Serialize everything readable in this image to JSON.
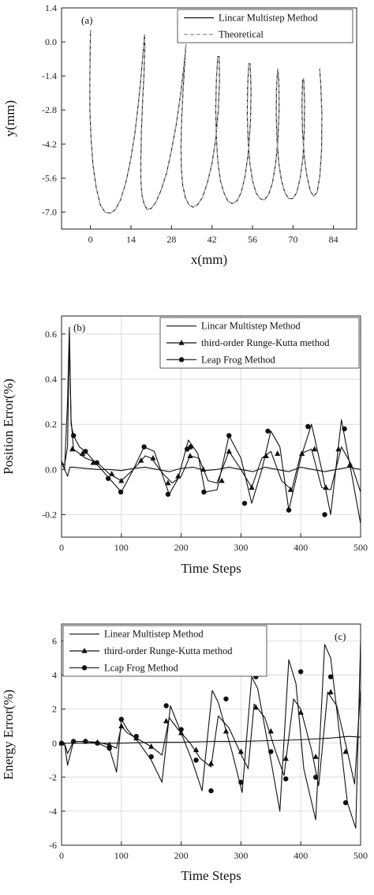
{
  "chart_data": [
    {
      "type": "line",
      "panel_label": "(a)",
      "xlabel": "x(mm)",
      "ylabel": "y(mm)",
      "xlim": [
        -10,
        92
      ],
      "ylim": [
        -7.7,
        1.4
      ],
      "xticks": [
        0,
        14,
        28,
        42,
        56,
        70,
        84
      ],
      "xtick_labels": [
        "0",
        "14",
        "28",
        "42",
        "56",
        "70",
        "84"
      ],
      "yticks": [
        1.4,
        0.0,
        -1.4,
        -2.8,
        -4.2,
        -5.6,
        -7.0
      ],
      "ytick_labels": [
        "1.4",
        "0.0",
        "-1.4",
        "-2.8",
        "-4.2",
        "-5.6",
        "-7.0"
      ],
      "legend_position": "top-right",
      "series": [
        {
          "name": "Lincar Multistep Method",
          "style": "solid",
          "x": [
            0,
            -0.2,
            -0.2,
            0.2,
            0.9,
            2.0,
            3.4,
            5.0,
            6.8,
            8.6,
            10.4,
            12.2,
            13.8,
            15.3,
            16.5,
            17.5,
            18.2,
            18.7,
            18.8,
            18.5,
            18.0,
            17.6,
            17.4,
            17.4,
            17.8,
            18.6,
            19.6,
            21.0,
            22.6,
            24.4,
            26.3,
            28.1,
            29.8,
            31.2,
            32.3,
            32.9,
            33.0,
            32.6,
            32.0,
            31.5,
            31.3,
            31.4,
            31.9,
            32.8,
            34.0,
            35.4,
            37.0,
            38.7,
            40.4,
            42.0,
            43.3,
            44.2,
            44.6,
            44.5,
            44.0,
            43.5,
            43.3,
            43.5,
            44.0,
            44.9,
            46.1,
            47.5,
            49.0,
            50.6,
            52.1,
            53.5,
            54.6,
            55.3,
            55.5,
            55.2,
            54.7,
            54.3,
            54.2,
            54.5,
            55.1,
            56.0,
            57.2,
            58.6,
            60.0,
            61.5,
            62.9,
            64.0,
            64.8,
            65.2,
            65.1,
            64.7,
            64.3,
            64.2,
            64.5,
            65.1,
            66.0,
            67.2,
            68.5,
            69.9,
            71.3,
            72.5,
            73.4,
            73.9,
            74.0,
            73.7,
            73.3,
            73.1,
            73.3,
            73.9,
            74.8,
            75.9,
            77.1,
            78.3,
            79.3,
            79.9,
            80.0,
            79.6,
            79.2
          ],
          "y": [
            0.5,
            -1.4,
            -2.8,
            -4.0,
            -5.1,
            -6.0,
            -6.7,
            -7.0,
            -7.05,
            -6.9,
            -6.5,
            -5.8,
            -4.9,
            -3.8,
            -2.6,
            -1.4,
            -0.4,
            0.3,
            -0.2,
            -1.3,
            -2.5,
            -3.7,
            -4.8,
            -5.7,
            -6.3,
            -6.7,
            -6.9,
            -6.85,
            -6.6,
            -6.1,
            -5.4,
            -4.4,
            -3.3,
            -2.1,
            -1.0,
            -0.2,
            -0.1,
            -0.9,
            -2.0,
            -3.2,
            -4.3,
            -5.2,
            -5.9,
            -6.4,
            -6.7,
            -6.8,
            -6.7,
            -6.4,
            -5.8,
            -5.0,
            -4.0,
            -2.8,
            -1.6,
            -0.6,
            -0.6,
            -1.6,
            -2.8,
            -3.9,
            -4.9,
            -5.7,
            -6.2,
            -6.55,
            -6.65,
            -6.55,
            -6.2,
            -5.5,
            -4.5,
            -3.3,
            -2.0,
            -0.9,
            -0.9,
            -1.9,
            -3.0,
            -4.1,
            -5.0,
            -5.7,
            -6.2,
            -6.45,
            -6.5,
            -6.3,
            -5.8,
            -5.0,
            -4.0,
            -2.8,
            -1.6,
            -1.1,
            -1.9,
            -3.0,
            -4.1,
            -5.0,
            -5.7,
            -6.2,
            -6.45,
            -6.45,
            -6.2,
            -5.6,
            -4.8,
            -3.7,
            -2.5,
            -1.5,
            -1.6,
            -2.6,
            -3.7,
            -4.7,
            -5.5,
            -6.1,
            -6.35,
            -6.2,
            -5.5,
            -4.4,
            -3.0,
            -1.7,
            -1.1
          ]
        },
        {
          "name": "Theoretical",
          "style": "dashed",
          "x": "same as Lincar Multistep Method",
          "y": "same as Lincar Multistep Method"
        }
      ]
    },
    {
      "type": "line",
      "panel_label": "(b)",
      "xlabel": "Time Steps",
      "ylabel": "Position Error(%)",
      "xlim": [
        0,
        500
      ],
      "ylim": [
        -0.3,
        0.68
      ],
      "xticks": [
        0,
        100,
        200,
        300,
        400,
        500
      ],
      "xtick_labels": [
        "0",
        "100",
        "200",
        "300",
        "400",
        "500"
      ],
      "yticks": [
        -0.2,
        0.0,
        0.2,
        0.4,
        0.6
      ],
      "ytick_labels": [
        "-0.2",
        "0.0",
        "0.2",
        "0.4",
        "0.6"
      ],
      "grid": true,
      "legend_position": "top-right",
      "series": [
        {
          "name": "Lincar Multistep Method",
          "marker": "none",
          "x": [
            0,
            5,
            10,
            14,
            20,
            40,
            60,
            80,
            100,
            120,
            140,
            160,
            180,
            200,
            220,
            240,
            260,
            280,
            300,
            320,
            340,
            360,
            380,
            400,
            420,
            440,
            460,
            480,
            500
          ],
          "y": [
            0.03,
            0.0,
            -0.03,
            0.01,
            0.01,
            0.005,
            0.0,
            0.0,
            -0.005,
            0.005,
            0.01,
            0.0,
            -0.01,
            0.005,
            0.01,
            -0.005,
            0.0,
            0.01,
            0.0,
            -0.01,
            0.01,
            0.0,
            -0.01,
            0.01,
            0.0,
            -0.01,
            0.0,
            0.01,
            0.0
          ]
        },
        {
          "name": "third-order Runge-Kutta method",
          "marker": "triangle",
          "x": [
            0,
            5,
            10,
            13,
            16,
            20,
            30,
            40,
            60,
            80,
            100,
            120,
            140,
            150,
            170,
            185,
            200,
            215,
            230,
            245,
            260,
            280,
            300,
            318,
            335,
            350,
            368,
            385,
            400,
            418,
            435,
            450,
            468,
            485,
            500
          ],
          "y": [
            0.03,
            0.02,
            0.1,
            0.58,
            0.22,
            0.09,
            0.07,
            0.05,
            0.03,
            -0.02,
            -0.05,
            0.0,
            0.06,
            0.05,
            -0.02,
            -0.06,
            -0.03,
            0.06,
            0.05,
            -0.05,
            -0.06,
            0.08,
            0.0,
            -0.08,
            0.05,
            0.08,
            -0.05,
            -0.09,
            0.07,
            0.09,
            -0.08,
            -0.09,
            0.1,
            0.02,
            -0.1
          ],
          "marker_x": [
            18,
            35,
            53,
            84,
            100,
            133,
            153,
            178,
            195,
            215,
            237,
            268,
            280,
            318,
            342,
            361,
            383,
            402,
            423,
            442,
            463,
            482
          ],
          "marker_y": [
            0.09,
            0.07,
            0.03,
            -0.02,
            -0.05,
            0.04,
            0.05,
            -0.06,
            -0.03,
            0.06,
            0.0,
            -0.05,
            0.08,
            -0.08,
            0.06,
            0.07,
            -0.09,
            0.07,
            0.09,
            -0.08,
            0.09,
            0.02
          ]
        },
        {
          "name": "Leap Frog  Method",
          "marker": "circle",
          "x": [
            0,
            5,
            10,
            13,
            16,
            20,
            30,
            40,
            60,
            80,
            100,
            120,
            138,
            155,
            180,
            195,
            212,
            228,
            240,
            260,
            280,
            300,
            318,
            335,
            350,
            365,
            380,
            400,
            418,
            435,
            450,
            468,
            485,
            500
          ],
          "y": [
            0.04,
            0.0,
            0.3,
            0.63,
            0.2,
            0.15,
            0.1,
            0.08,
            0.02,
            -0.04,
            -0.1,
            0.0,
            0.1,
            0.08,
            -0.11,
            -0.04,
            0.13,
            0.07,
            -0.1,
            -0.09,
            0.15,
            0.05,
            -0.15,
            0.0,
            0.17,
            0.1,
            -0.18,
            0.05,
            0.2,
            0.0,
            -0.2,
            0.22,
            -0.02,
            -0.24
          ],
          "marker_x": [
            20,
            40,
            59,
            78,
            99,
            138,
            178,
            210,
            216,
            238,
            280,
            306,
            345,
            380,
            412,
            440,
            473
          ],
          "marker_y": [
            0.15,
            0.08,
            0.03,
            -0.04,
            -0.1,
            0.1,
            -0.11,
            0.09,
            0.1,
            -0.1,
            0.15,
            -0.15,
            0.17,
            -0.18,
            0.19,
            -0.2,
            0.18
          ]
        }
      ]
    },
    {
      "type": "line",
      "panel_label": "(c)",
      "xlabel": "Time Steps",
      "ylabel": "Energy Error(%)",
      "xlim": [
        0,
        500
      ],
      "ylim": [
        -6,
        7
      ],
      "xticks": [
        0,
        100,
        200,
        300,
        400,
        500
      ],
      "xtick_labels": [
        "0",
        "100",
        "200",
        "300",
        "400",
        "500"
      ],
      "yticks": [
        -6,
        -4,
        -2,
        0,
        2,
        4,
        6
      ],
      "ytick_labels": [
        "-6",
        "-4",
        "-2",
        "0",
        "2",
        "4",
        "6"
      ],
      "grid": true,
      "legend_position": "top-left",
      "series": [
        {
          "name": "Linear Multistep Method",
          "marker": "none",
          "x": [
            0,
            50,
            100,
            150,
            200,
            250,
            300,
            350,
            400,
            450,
            480,
            500
          ],
          "y": [
            0.0,
            0.0,
            0.0,
            0.05,
            0.05,
            0.1,
            0.1,
            0.15,
            0.2,
            0.3,
            0.4,
            0.35
          ]
        },
        {
          "name": "third-order Runge-Kutta method",
          "marker": "triangle",
          "x": [
            0,
            5,
            10,
            20,
            40,
            60,
            80,
            92,
            100,
            110,
            130,
            150,
            168,
            180,
            195,
            215,
            232,
            250,
            262,
            280,
            298,
            312,
            322,
            340,
            358,
            372,
            388,
            400,
            418,
            430,
            445,
            460,
            478,
            490,
            500
          ],
          "y": [
            0.0,
            0.0,
            -0.6,
            0.1,
            0.1,
            0.05,
            -0.1,
            -0.3,
            1.0,
            0.6,
            0.2,
            -0.2,
            -0.7,
            1.5,
            0.8,
            0.0,
            -0.9,
            -1.4,
            1.6,
            0.9,
            -0.5,
            -1.5,
            2.3,
            1.5,
            -0.5,
            -1.9,
            2.6,
            2.0,
            -0.4,
            -2.5,
            3.0,
            2.2,
            -0.5,
            -2.4,
            3.2
          ],
          "marker_x": [
            0,
            20,
            40,
            60,
            80,
            100,
            125,
            150,
            175,
            200,
            225,
            250,
            275,
            300,
            325,
            350,
            375,
            400,
            425,
            450,
            475
          ],
          "marker_y": [
            0.0,
            0.1,
            0.1,
            0.05,
            -0.1,
            1.0,
            0.3,
            -0.2,
            1.3,
            0.6,
            -0.4,
            -1.2,
            0.7,
            -0.5,
            2.1,
            0.7,
            -0.9,
            1.8,
            -0.8,
            3.0,
            -0.5
          ]
        },
        {
          "name": "Lcap Frog  Method",
          "marker": "circle",
          "x": [
            0,
            5,
            10,
            20,
            40,
            60,
            80,
            92,
            100,
            110,
            130,
            150,
            168,
            182,
            200,
            218,
            235,
            252,
            262,
            285,
            302,
            318,
            328,
            350,
            365,
            380,
            392,
            405,
            425,
            440,
            450,
            460,
            478,
            492,
            500
          ],
          "y": [
            0.0,
            0.0,
            -1.3,
            0.1,
            0.1,
            0.0,
            -0.3,
            -1.7,
            1.4,
            0.8,
            0.0,
            -1.0,
            -2.3,
            2.2,
            0.6,
            -1.0,
            -2.8,
            3.1,
            2.4,
            -0.5,
            -2.9,
            3.9,
            3.2,
            -1.0,
            -4.0,
            4.9,
            3.5,
            -1.5,
            -4.5,
            5.8,
            5.0,
            2.0,
            -3.5,
            -5.0,
            6.0
          ],
          "marker_x": [
            0,
            20,
            40,
            60,
            80,
            100,
            125,
            150,
            175,
            200,
            225,
            250,
            275,
            300,
            325,
            350,
            375,
            400,
            425,
            450,
            475
          ],
          "marker_y": [
            0.0,
            0.1,
            0.1,
            0.0,
            -0.3,
            1.4,
            0.4,
            -0.8,
            2.2,
            0.8,
            -1.0,
            -2.8,
            2.6,
            -2.3,
            3.9,
            -0.5,
            -2.1,
            4.2,
            -2.0,
            3.9,
            -3.5
          ]
        }
      ]
    }
  ]
}
